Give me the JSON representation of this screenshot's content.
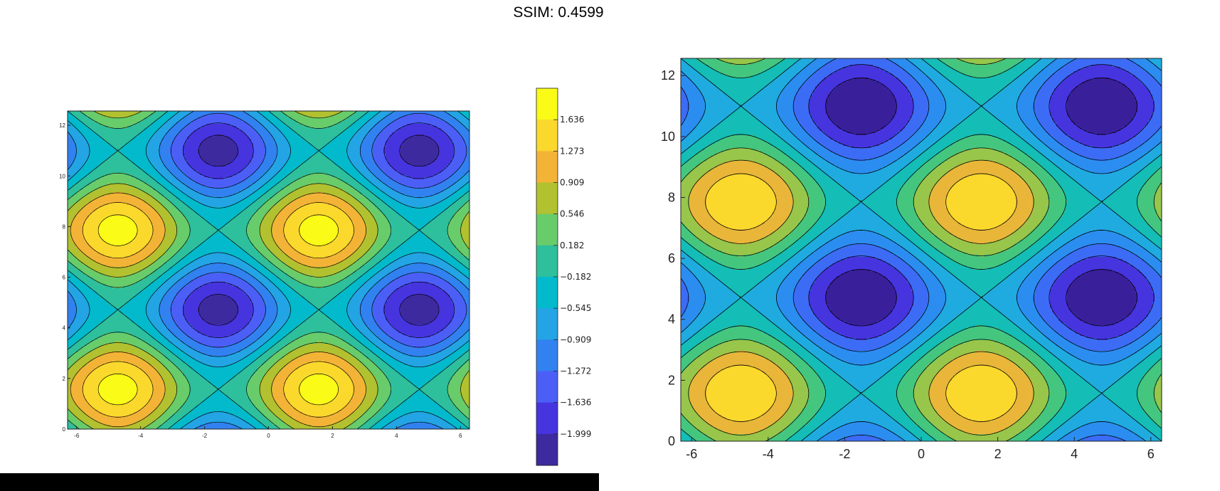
{
  "header": {
    "title": "SSIM: 0.4599"
  },
  "chart_data": [
    {
      "type": "contourf",
      "function": "z = sin(x) + sin(y)",
      "xlim": [
        -6.283,
        6.283
      ],
      "ylim": [
        0,
        12.566
      ],
      "x_ticks": [
        -6,
        -4,
        -2,
        0,
        2,
        4,
        6
      ],
      "y_ticks": [
        0,
        2,
        4,
        6,
        8,
        10,
        12
      ],
      "grid": false,
      "colorbar": {
        "levels": [
          -2.181,
          -1.817,
          -1.454,
          -1.09,
          -0.727,
          -0.363,
          0.0,
          0.364,
          0.727,
          1.091,
          1.454,
          1.818
        ],
        "tick_labels": [
          "1.636",
          "1.273",
          "0.909",
          "0.546",
          "0.182",
          "−0.182",
          "−0.545",
          "−0.909",
          "−1.272",
          "−1.636",
          "−1.999"
        ],
        "colors": [
          "#3e2a9f",
          "#4634df",
          "#4b5ff7",
          "#3182f0",
          "#23a4e4",
          "#02bacb",
          "#2ebf9c",
          "#68cc6b",
          "#b2c12f",
          "#f3b337",
          "#fbd82c",
          "#fafb16"
        ]
      }
    },
    {
      "type": "contourf",
      "function": "z = sin(x) + sin(y)",
      "xlim": [
        -6.283,
        6.283
      ],
      "ylim": [
        0,
        12.566
      ],
      "x_ticks": [
        -6,
        -4,
        -2,
        0,
        2,
        4,
        6
      ],
      "y_ticks": [
        0,
        2,
        4,
        6,
        8,
        10,
        12
      ],
      "grid": false,
      "levels": [
        -2.0,
        -1.6,
        -1.2,
        -0.8,
        -0.4,
        0.0,
        0.4,
        0.8,
        1.2,
        1.6,
        2.0
      ],
      "colors": [
        "#3a1f9a",
        "#4634df",
        "#3c6cf5",
        "#2b8df0",
        "#1fabe0",
        "#14bdb5",
        "#44c67f",
        "#97c64a",
        "#e9b63a",
        "#fbd82c",
        "#fafb16"
      ]
    }
  ]
}
